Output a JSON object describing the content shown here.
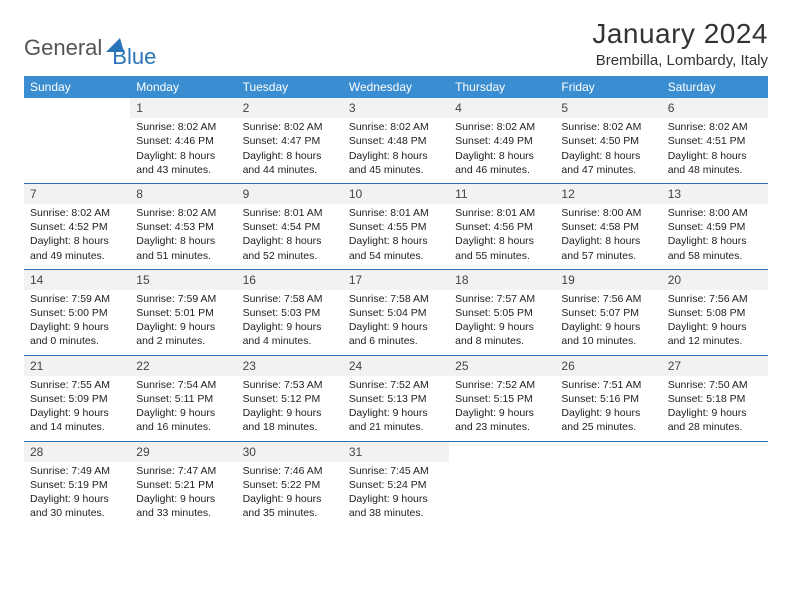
{
  "logo": {
    "text1": "General",
    "text2": "Blue"
  },
  "title": {
    "month": "January 2024",
    "location": "Brembilla, Lombardy, Italy"
  },
  "colors": {
    "header_bg": "#3a8dd0",
    "rule": "#2b74b8",
    "shade": "#f2f2f2",
    "text": "#222222",
    "logo_accent": "#2b74b8"
  },
  "weekdays": [
    "Sunday",
    "Monday",
    "Tuesday",
    "Wednesday",
    "Thursday",
    "Friday",
    "Saturday"
  ],
  "weeks": [
    [
      {
        "n": "",
        "sr": "",
        "ss": "",
        "d": ""
      },
      {
        "n": "1",
        "sr": "8:02 AM",
        "ss": "4:46 PM",
        "d": "8 hours and 43 minutes."
      },
      {
        "n": "2",
        "sr": "8:02 AM",
        "ss": "4:47 PM",
        "d": "8 hours and 44 minutes."
      },
      {
        "n": "3",
        "sr": "8:02 AM",
        "ss": "4:48 PM",
        "d": "8 hours and 45 minutes."
      },
      {
        "n": "4",
        "sr": "8:02 AM",
        "ss": "4:49 PM",
        "d": "8 hours and 46 minutes."
      },
      {
        "n": "5",
        "sr": "8:02 AM",
        "ss": "4:50 PM",
        "d": "8 hours and 47 minutes."
      },
      {
        "n": "6",
        "sr": "8:02 AM",
        "ss": "4:51 PM",
        "d": "8 hours and 48 minutes."
      }
    ],
    [
      {
        "n": "7",
        "sr": "8:02 AM",
        "ss": "4:52 PM",
        "d": "8 hours and 49 minutes."
      },
      {
        "n": "8",
        "sr": "8:02 AM",
        "ss": "4:53 PM",
        "d": "8 hours and 51 minutes."
      },
      {
        "n": "9",
        "sr": "8:01 AM",
        "ss": "4:54 PM",
        "d": "8 hours and 52 minutes."
      },
      {
        "n": "10",
        "sr": "8:01 AM",
        "ss": "4:55 PM",
        "d": "8 hours and 54 minutes."
      },
      {
        "n": "11",
        "sr": "8:01 AM",
        "ss": "4:56 PM",
        "d": "8 hours and 55 minutes."
      },
      {
        "n": "12",
        "sr": "8:00 AM",
        "ss": "4:58 PM",
        "d": "8 hours and 57 minutes."
      },
      {
        "n": "13",
        "sr": "8:00 AM",
        "ss": "4:59 PM",
        "d": "8 hours and 58 minutes."
      }
    ],
    [
      {
        "n": "14",
        "sr": "7:59 AM",
        "ss": "5:00 PM",
        "d": "9 hours and 0 minutes."
      },
      {
        "n": "15",
        "sr": "7:59 AM",
        "ss": "5:01 PM",
        "d": "9 hours and 2 minutes."
      },
      {
        "n": "16",
        "sr": "7:58 AM",
        "ss": "5:03 PM",
        "d": "9 hours and 4 minutes."
      },
      {
        "n": "17",
        "sr": "7:58 AM",
        "ss": "5:04 PM",
        "d": "9 hours and 6 minutes."
      },
      {
        "n": "18",
        "sr": "7:57 AM",
        "ss": "5:05 PM",
        "d": "9 hours and 8 minutes."
      },
      {
        "n": "19",
        "sr": "7:56 AM",
        "ss": "5:07 PM",
        "d": "9 hours and 10 minutes."
      },
      {
        "n": "20",
        "sr": "7:56 AM",
        "ss": "5:08 PM",
        "d": "9 hours and 12 minutes."
      }
    ],
    [
      {
        "n": "21",
        "sr": "7:55 AM",
        "ss": "5:09 PM",
        "d": "9 hours and 14 minutes."
      },
      {
        "n": "22",
        "sr": "7:54 AM",
        "ss": "5:11 PM",
        "d": "9 hours and 16 minutes."
      },
      {
        "n": "23",
        "sr": "7:53 AM",
        "ss": "5:12 PM",
        "d": "9 hours and 18 minutes."
      },
      {
        "n": "24",
        "sr": "7:52 AM",
        "ss": "5:13 PM",
        "d": "9 hours and 21 minutes."
      },
      {
        "n": "25",
        "sr": "7:52 AM",
        "ss": "5:15 PM",
        "d": "9 hours and 23 minutes."
      },
      {
        "n": "26",
        "sr": "7:51 AM",
        "ss": "5:16 PM",
        "d": "9 hours and 25 minutes."
      },
      {
        "n": "27",
        "sr": "7:50 AM",
        "ss": "5:18 PM",
        "d": "9 hours and 28 minutes."
      }
    ],
    [
      {
        "n": "28",
        "sr": "7:49 AM",
        "ss": "5:19 PM",
        "d": "9 hours and 30 minutes."
      },
      {
        "n": "29",
        "sr": "7:47 AM",
        "ss": "5:21 PM",
        "d": "9 hours and 33 minutes."
      },
      {
        "n": "30",
        "sr": "7:46 AM",
        "ss": "5:22 PM",
        "d": "9 hours and 35 minutes."
      },
      {
        "n": "31",
        "sr": "7:45 AM",
        "ss": "5:24 PM",
        "d": "9 hours and 38 minutes."
      },
      {
        "n": "",
        "sr": "",
        "ss": "",
        "d": ""
      },
      {
        "n": "",
        "sr": "",
        "ss": "",
        "d": ""
      },
      {
        "n": "",
        "sr": "",
        "ss": "",
        "d": ""
      }
    ]
  ],
  "labels": {
    "sunrise": "Sunrise:",
    "sunset": "Sunset:",
    "daylight": "Daylight:"
  }
}
